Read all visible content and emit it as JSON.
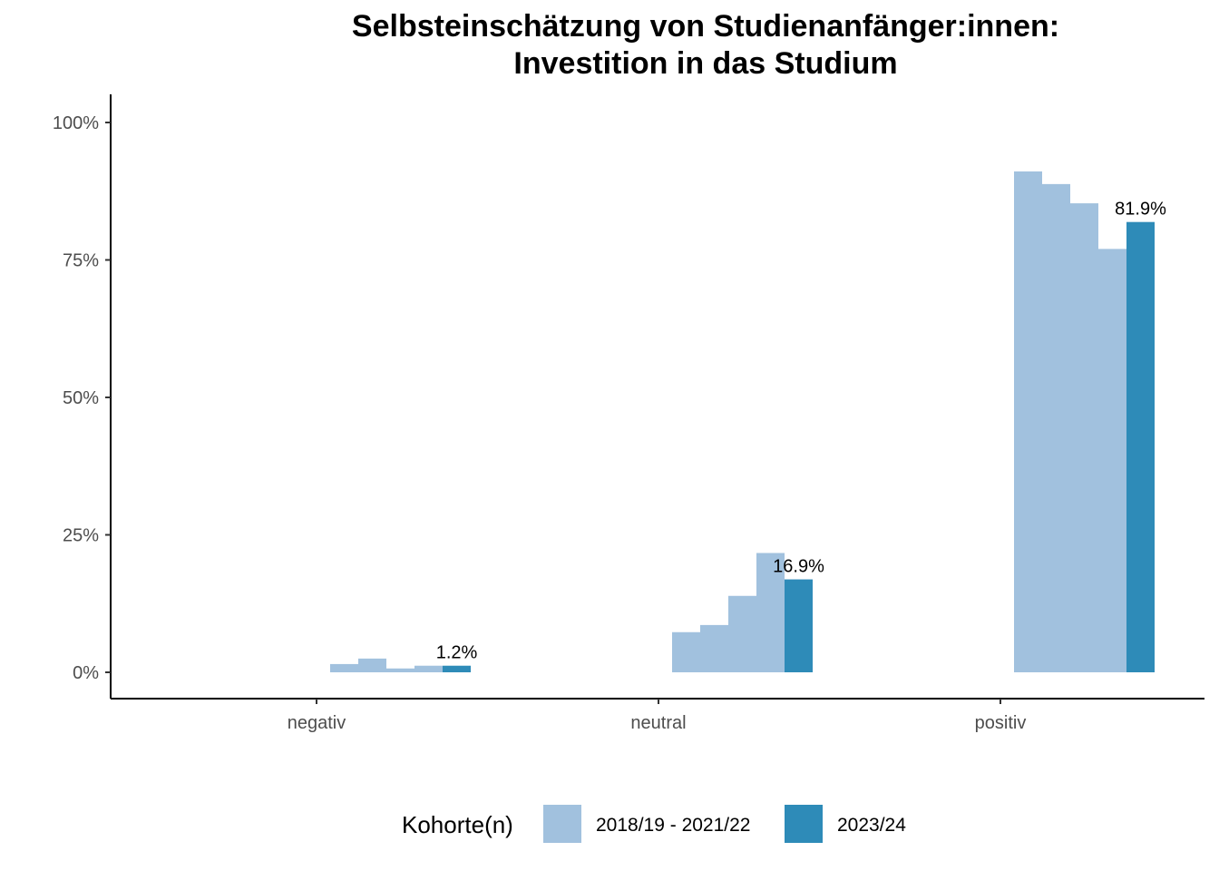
{
  "title_line1": "Selbsteinschätzung von Studienanfänger:innen:",
  "title_line2": "Investition in das Studium",
  "chart_data": {
    "type": "bar",
    "categories": [
      "negativ",
      "neutral",
      "positiv"
    ],
    "series": [
      {
        "name": "2018/19 - 2021/22",
        "color": "#a1c1de",
        "cohorts": 4,
        "values": [
          [
            1.5,
            2.5,
            0.7,
            1.2
          ],
          [
            7.3,
            8.6,
            13.9,
            21.7
          ],
          [
            91.1,
            88.8,
            85.3,
            77.0
          ]
        ]
      },
      {
        "name": "2023/24",
        "color": "#2e8bb8",
        "cohorts": 1,
        "values": [
          [
            1.2
          ],
          [
            16.9
          ],
          [
            81.9
          ]
        ]
      }
    ],
    "data_labels": [
      "1.2%",
      "16.9%",
      "81.9%"
    ],
    "ylim": [
      0,
      105
    ],
    "yticks": [
      0,
      25,
      50,
      75,
      100
    ],
    "ytick_labels": [
      "0%",
      "25%",
      "50%",
      "75%",
      "100%"
    ],
    "xlabel": "",
    "ylabel": "",
    "legend_title": "Kohorte(n)",
    "legend_position": "bottom",
    "grid": false
  }
}
